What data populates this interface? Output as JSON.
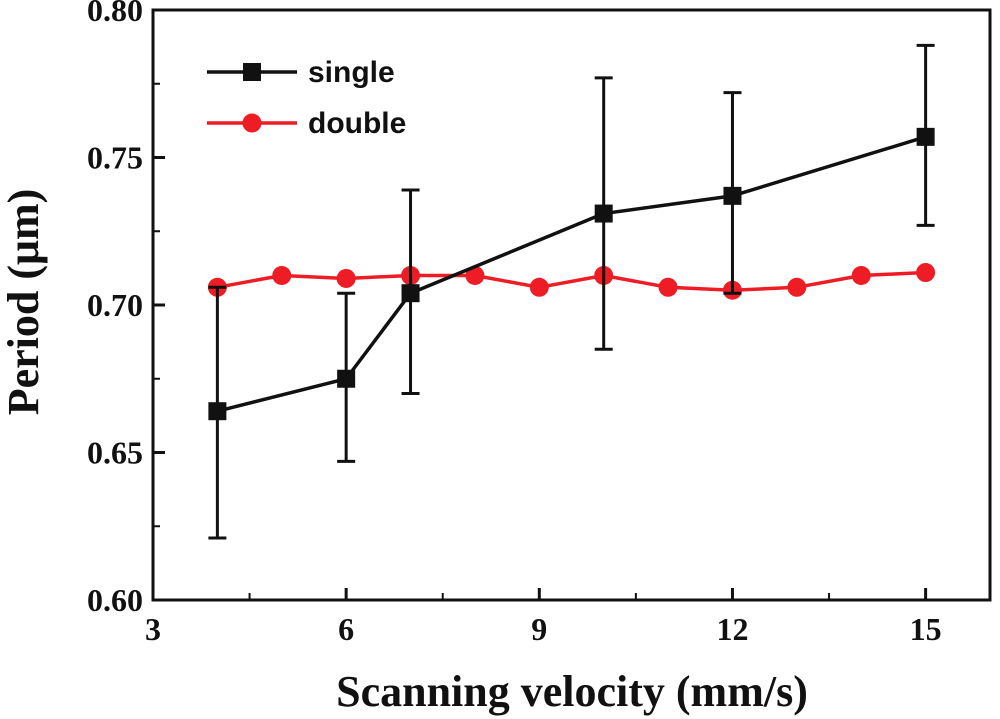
{
  "chart_data": {
    "type": "line",
    "title": "",
    "xlabel": "Scanning velocity (mm/s)",
    "ylabel": "Period (μm)",
    "xlim": [
      3,
      16
    ],
    "ylim": [
      0.6,
      0.8
    ],
    "x_ticks": [
      3,
      6,
      9,
      12,
      15
    ],
    "x_tick_labels": [
      "3",
      "6",
      "9",
      "12",
      "15"
    ],
    "y_ticks": [
      0.6,
      0.65,
      0.7,
      0.75,
      0.8
    ],
    "y_tick_labels": [
      "0.60",
      "0.65",
      "0.70",
      "0.75",
      "0.80"
    ],
    "legend_position": "top-left",
    "grid": false,
    "series": [
      {
        "name": "single",
        "color": "#111111",
        "marker": "square",
        "x": [
          4,
          6,
          7,
          10,
          12,
          15
        ],
        "values": [
          0.664,
          0.675,
          0.704,
          0.731,
          0.737,
          0.757
        ],
        "error_low": [
          0.621,
          0.647,
          0.67,
          0.685,
          0.704,
          0.727
        ],
        "error_high": [
          0.706,
          0.704,
          0.739,
          0.777,
          0.772,
          0.788
        ]
      },
      {
        "name": "double",
        "color": "#ee1c25",
        "marker": "circle",
        "x": [
          4,
          5,
          6,
          7,
          8,
          9,
          10,
          11,
          12,
          13,
          14,
          15
        ],
        "values": [
          0.706,
          0.71,
          0.709,
          0.71,
          0.71,
          0.706,
          0.71,
          0.706,
          0.705,
          0.706,
          0.71,
          0.711
        ]
      }
    ]
  }
}
